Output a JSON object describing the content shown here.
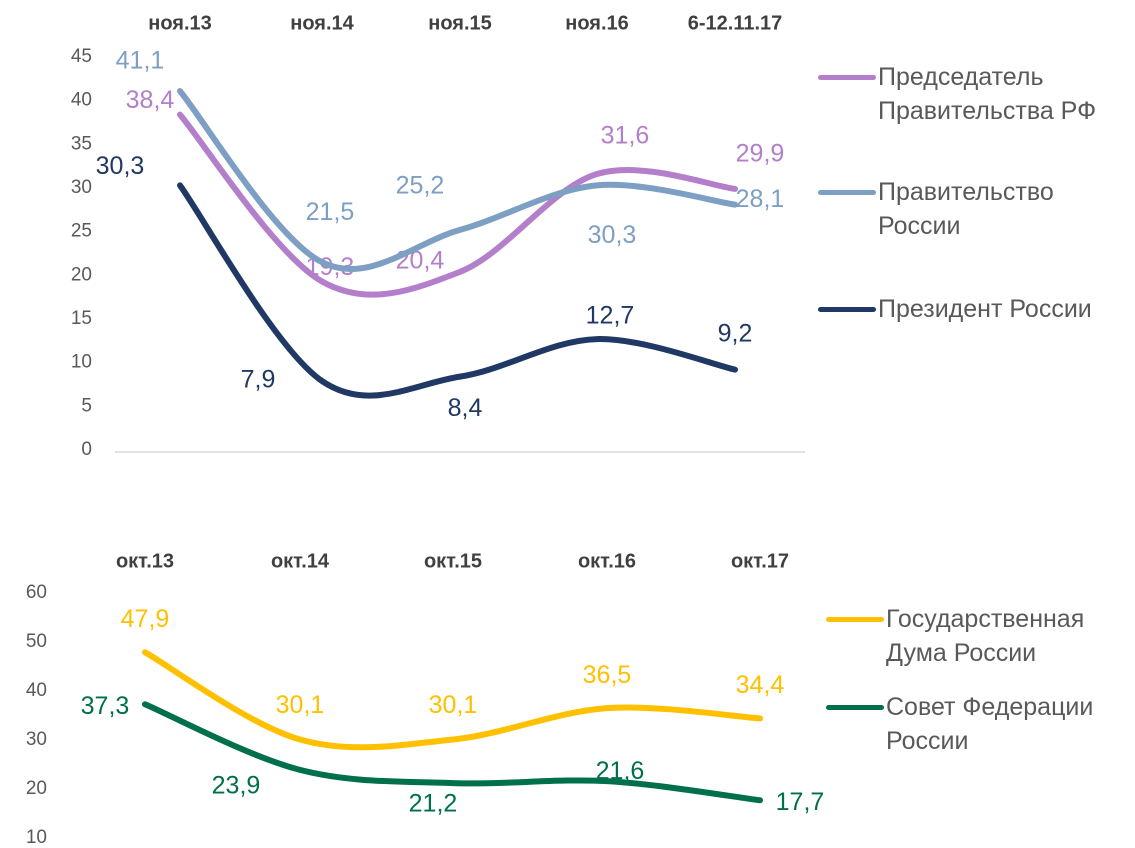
{
  "chart_data": [
    {
      "type": "line",
      "categories": [
        "ноя.13",
        "ноя.14",
        "ноя.15",
        "ноя.16",
        "6-12.11.17"
      ],
      "ylim": [
        0,
        45
      ],
      "yticks": [
        0,
        5,
        10,
        15,
        20,
        25,
        30,
        35,
        40,
        45
      ],
      "legend": "right",
      "series": [
        {
          "name": "Председатель Правительства РФ",
          "color": "#b37fcb",
          "values": [
            38.4,
            19.3,
            20.4,
            31.6,
            29.9
          ],
          "value_labels": [
            "38,4",
            "19,3",
            "20,4",
            "31,6",
            "29,9"
          ]
        },
        {
          "name": "Правительство России",
          "color": "#7d9fc3",
          "values": [
            41.1,
            21.5,
            25.2,
            30.3,
            28.1
          ],
          "value_labels": [
            "41,1",
            "21,5",
            "25,2",
            "30,3",
            "28,1"
          ]
        },
        {
          "name": "Президент России",
          "color": "#1f3864",
          "values": [
            30.3,
            7.9,
            8.4,
            12.7,
            9.2
          ],
          "value_labels": [
            "30,3",
            "7,9",
            "8,4",
            "12,7",
            "9,2"
          ]
        }
      ]
    },
    {
      "type": "line",
      "categories": [
        "окт.13",
        "окт.14",
        "окт.15",
        "окт.16",
        "окт.17"
      ],
      "ylim": [
        10,
        60
      ],
      "yticks": [
        10,
        20,
        30,
        40,
        50,
        60
      ],
      "legend": "right",
      "series": [
        {
          "name": "Государственная Дума России",
          "color": "#ffc000",
          "values": [
            47.9,
            30.1,
            30.1,
            36.5,
            34.4
          ],
          "value_labels": [
            "47,9",
            "30,1",
            "30,1",
            "36,5",
            "34,4"
          ]
        },
        {
          "name": "Совет Федерации России",
          "color": "#00704c",
          "values": [
            37.3,
            23.9,
            21.2,
            21.6,
            17.7
          ],
          "value_labels": [
            "37,3",
            "23,9",
            "21,2",
            "21,6",
            "17,7"
          ]
        }
      ]
    }
  ]
}
